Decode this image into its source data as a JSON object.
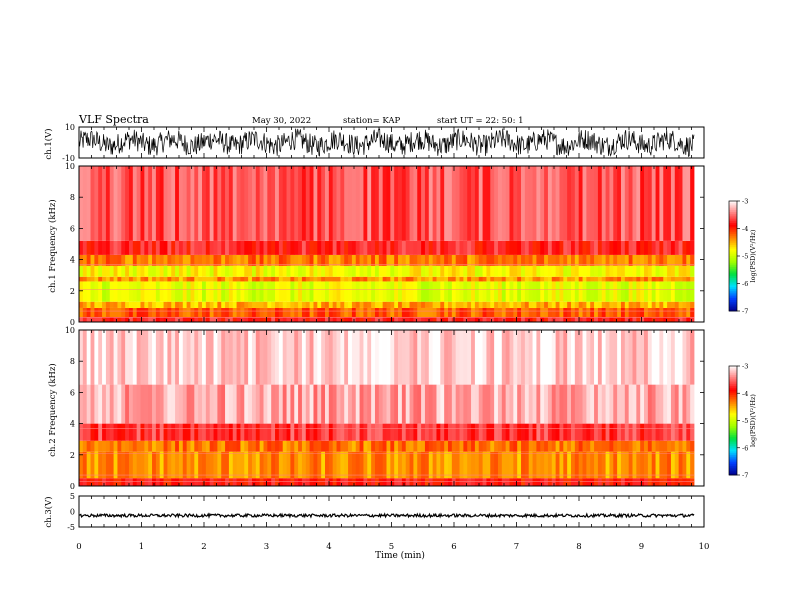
{
  "header": {
    "title": "VLF Spectra",
    "date": "May 30, 2022",
    "station": "station= KAP",
    "start": "start  UT  =   22: 50: 1"
  },
  "chart_data": [
    {
      "type": "line",
      "panel": "ch1-waveform",
      "ylabel": "ch.1(V)",
      "ylim": [
        -10,
        10
      ],
      "ytick_labels": [
        "10",
        "-10"
      ],
      "xlim": [
        0,
        10
      ],
      "xlim_data": [
        0,
        9.84
      ],
      "description_values": {
        "approx_amplitude": 7,
        "mean": 0
      }
    },
    {
      "type": "heatmap",
      "panel": "ch1-spectrogram",
      "ylabel": "ch.1 Frequency  (kHz)",
      "ylim": [
        0,
        10
      ],
      "ytick_labels": [
        "0",
        "2",
        "4",
        "6",
        "8",
        "10"
      ],
      "xlim": [
        0,
        10
      ],
      "xlim_data": [
        0,
        9.84
      ],
      "bands": [
        {
          "from": 0.0,
          "to": 0.3,
          "level": -3.8
        },
        {
          "from": 0.3,
          "to": 0.9,
          "level": -4.2
        },
        {
          "from": 0.9,
          "to": 1.3,
          "level": -4.5
        },
        {
          "from": 1.3,
          "to": 2.6,
          "level": -4.9
        },
        {
          "from": 2.6,
          "to": 2.9,
          "level": -4.4
        },
        {
          "from": 2.9,
          "to": 3.6,
          "level": -4.8
        },
        {
          "from": 3.6,
          "to": 4.3,
          "level": -4.3
        },
        {
          "from": 4.3,
          "to": 5.2,
          "level": -3.8
        },
        {
          "from": 5.2,
          "to": 10.0,
          "level": -3.6
        }
      ]
    },
    {
      "type": "heatmap",
      "panel": "ch2-spectrogram",
      "ylabel": "ch.2 Frequency  (kHz)",
      "ylim": [
        0,
        10
      ],
      "ytick_labels": [
        "0",
        "2",
        "4",
        "6",
        "8",
        "10"
      ],
      "xlim": [
        0,
        10
      ],
      "xlim_data": [
        0,
        9.84
      ],
      "bands": [
        {
          "from": 0.0,
          "to": 0.5,
          "level": -3.9
        },
        {
          "from": 0.5,
          "to": 2.2,
          "level": -4.4
        },
        {
          "from": 2.2,
          "to": 2.9,
          "level": -4.3
        },
        {
          "from": 2.9,
          "to": 4.0,
          "level": -3.7
        },
        {
          "from": 4.0,
          "to": 6.5,
          "level": -3.3
        },
        {
          "from": 6.5,
          "to": 10.0,
          "level": -3.15
        }
      ]
    },
    {
      "type": "line",
      "panel": "ch3-waveform",
      "ylabel": "ch.3(V)",
      "ylim": [
        -5,
        5
      ],
      "ytick_labels": [
        "5",
        "0",
        "-5"
      ],
      "xlim": [
        0,
        10
      ],
      "xlim_data": [
        0,
        9.84
      ],
      "xlabel": "Time  (min)",
      "xtick_labels": [
        "0",
        "1",
        "2",
        "3",
        "4",
        "5",
        "6",
        "7",
        "8",
        "9",
        "10"
      ],
      "description_values": {
        "approx_mean": -1.3,
        "approx_amplitude": 0.5
      }
    }
  ],
  "colorbar": {
    "label": "log(PSD)(V²/Hz)",
    "range": [
      -7,
      -3
    ],
    "tick_labels": [
      "-3",
      "-4",
      "-5",
      "-6",
      "-7"
    ],
    "colors": [
      "#00008c",
      "#0040ff",
      "#00e0ff",
      "#00e040",
      "#a0ff00",
      "#ffff00",
      "#ff8000",
      "#ff0000",
      "#ff8080",
      "#ffffff"
    ]
  }
}
